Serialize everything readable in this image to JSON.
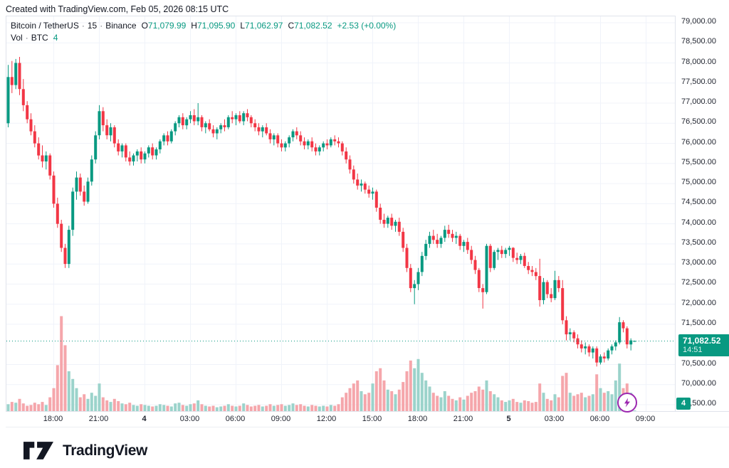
{
  "header": {
    "credit": "Created with TradingView.com, Feb 05, 2026 08:15 UTC"
  },
  "legend": {
    "series": "Bitcoin / TetherUS",
    "interval": "15",
    "exchange": "Binance",
    "dot": "·",
    "o_label": "O",
    "o": "71,079.99",
    "h_label": "H",
    "h": "71,095.90",
    "l_label": "L",
    "l": "71,062.97",
    "c_label": "C",
    "c": "71,082.52",
    "change": "+2.53 (+0.00%)",
    "vol_label": "Vol",
    "vol_unit": "BTC",
    "vol_value": "4"
  },
  "price_scale": {
    "ticks": [
      {
        "label": "79,000.00",
        "price": 79000
      },
      {
        "label": "78,500.00",
        "price": 78500
      },
      {
        "label": "78,000.00",
        "price": 78000
      },
      {
        "label": "77,500.00",
        "price": 77500
      },
      {
        "label": "77,000.00",
        "price": 77000
      },
      {
        "label": "76,500.00",
        "price": 76500
      },
      {
        "label": "76,000.00",
        "price": 76000
      },
      {
        "label": "75,500.00",
        "price": 75500
      },
      {
        "label": "75,000.00",
        "price": 75000
      },
      {
        "label": "74,500.00",
        "price": 74500
      },
      {
        "label": "74,000.00",
        "price": 74000
      },
      {
        "label": "73,500.00",
        "price": 73500
      },
      {
        "label": "73,000.00",
        "price": 73000
      },
      {
        "label": "72,500.00",
        "price": 72500
      },
      {
        "label": "72,000.00",
        "price": 72000
      },
      {
        "label": "71,500.00",
        "price": 71500
      },
      {
        "label": "70,500.00",
        "price": 70500
      },
      {
        "label": "70,000.00",
        "price": 70000
      },
      {
        "label": "69,500.00",
        "price": 69500
      }
    ],
    "badge": {
      "price": "71,082.52",
      "countdown": "14:51"
    },
    "volume_badge": "4"
  },
  "time_scale": {
    "ticks": [
      {
        "label": "18:00",
        "bar": 12,
        "bold": false
      },
      {
        "label": "21:00",
        "bar": 24,
        "bold": false
      },
      {
        "label": "4",
        "bar": 36,
        "bold": true
      },
      {
        "label": "03:00",
        "bar": 48,
        "bold": false
      },
      {
        "label": "06:00",
        "bar": 60,
        "bold": false
      },
      {
        "label": "09:00",
        "bar": 72,
        "bold": false
      },
      {
        "label": "12:00",
        "bar": 84,
        "bold": false
      },
      {
        "label": "15:00",
        "bar": 96,
        "bold": false
      },
      {
        "label": "18:00",
        "bar": 108,
        "bold": false
      },
      {
        "label": "21:00",
        "bar": 120,
        "bold": false
      },
      {
        "label": "5",
        "bar": 132,
        "bold": true
      },
      {
        "label": "03:00",
        "bar": 144,
        "bold": false
      },
      {
        "label": "06:00",
        "bar": 156,
        "bold": false
      },
      {
        "label": "09:00",
        "bar": 168,
        "bold": false
      }
    ]
  },
  "footer": {
    "logo_text": "TradingView"
  },
  "colors": {
    "up": "#089981",
    "down": "#f23645",
    "volume_up": "#9bd3cb",
    "volume_down": "#f5a6ab",
    "grid": "#f0f3fa",
    "separator": "#e0e3eb",
    "badge_bg": "#089981",
    "accent_purple": "#9c27b0",
    "text": "#131722"
  },
  "chart_data": {
    "type": "candlestick+volume",
    "title": "Bitcoin / TetherUS · 15 · Binance",
    "interval_minutes": 15,
    "price_axis": {
      "top": 79159,
      "bottom": 69323,
      "tick_step": 500
    },
    "current_price": 71082.52,
    "current_bar_countdown": "14:51",
    "current_volume": 4,
    "volume_scale_max": 650,
    "bars_note": "each bar = [open, high, low, close, volume]; 15-min bars, 2026-02-03 15:00 UTC through 2026-02-05 08:15 UTC",
    "bars": [
      [
        76500,
        77950,
        76400,
        77650,
        45
      ],
      [
        77650,
        78050,
        77250,
        77450,
        60
      ],
      [
        77450,
        78100,
        77350,
        78000,
        55
      ],
      [
        78000,
        78150,
        77200,
        77350,
        80
      ],
      [
        77350,
        77600,
        76800,
        76950,
        50
      ],
      [
        76950,
        77050,
        76500,
        76600,
        35
      ],
      [
        76600,
        76750,
        76200,
        76300,
        40
      ],
      [
        76300,
        76450,
        75900,
        76000,
        55
      ],
      [
        76000,
        76150,
        75600,
        75700,
        45
      ],
      [
        75700,
        75950,
        75400,
        75550,
        60
      ],
      [
        75550,
        75800,
        75350,
        75700,
        40
      ],
      [
        75700,
        75750,
        75100,
        75200,
        90
      ],
      [
        75200,
        75300,
        74400,
        74500,
        150
      ],
      [
        74500,
        74650,
        73900,
        74000,
        300
      ],
      [
        74000,
        74100,
        73300,
        73400,
        620
      ],
      [
        73400,
        73500,
        72900,
        73000,
        430
      ],
      [
        73000,
        73950,
        72900,
        73850,
        260
      ],
      [
        73850,
        74900,
        73700,
        74800,
        210
      ],
      [
        74800,
        75300,
        74600,
        75150,
        150
      ],
      [
        75150,
        75250,
        74700,
        74800,
        90
      ],
      [
        74800,
        74950,
        74450,
        74550,
        110
      ],
      [
        74550,
        75150,
        74500,
        75050,
        80
      ],
      [
        75050,
        75700,
        74950,
        75600,
        120
      ],
      [
        75600,
        76300,
        75500,
        76200,
        100
      ],
      [
        76200,
        76950,
        76100,
        76800,
        180
      ],
      [
        76800,
        76900,
        76300,
        76450,
        90
      ],
      [
        76450,
        76600,
        76100,
        76200,
        70
      ],
      [
        76200,
        76500,
        76050,
        76400,
        60
      ],
      [
        76400,
        76450,
        75900,
        76000,
        80
      ],
      [
        76000,
        76100,
        75700,
        75800,
        65
      ],
      [
        75800,
        76000,
        75650,
        75950,
        50
      ],
      [
        75950,
        76000,
        75550,
        75650,
        45
      ],
      [
        75650,
        75800,
        75450,
        75550,
        55
      ],
      [
        75550,
        75750,
        75450,
        75700,
        40
      ],
      [
        75700,
        75850,
        75550,
        75800,
        35
      ],
      [
        75800,
        75900,
        75500,
        75600,
        45
      ],
      [
        75600,
        75800,
        75500,
        75750,
        40
      ],
      [
        75750,
        75950,
        75650,
        75900,
        35
      ],
      [
        75900,
        76000,
        75600,
        75700,
        30
      ],
      [
        75700,
        75900,
        75600,
        75850,
        35
      ],
      [
        75850,
        76100,
        75750,
        76050,
        45
      ],
      [
        76050,
        76250,
        75950,
        76200,
        40
      ],
      [
        76200,
        76300,
        75950,
        76050,
        35
      ],
      [
        76050,
        76350,
        76000,
        76300,
        30
      ],
      [
        76300,
        76550,
        76200,
        76500,
        50
      ],
      [
        76500,
        76700,
        76400,
        76650,
        55
      ],
      [
        76650,
        76750,
        76350,
        76450,
        40
      ],
      [
        76450,
        76650,
        76350,
        76600,
        35
      ],
      [
        76600,
        76800,
        76500,
        76700,
        45
      ],
      [
        76700,
        76850,
        76450,
        76550,
        50
      ],
      [
        76550,
        77000,
        76450,
        76650,
        70
      ],
      [
        76650,
        76700,
        76300,
        76400,
        45
      ],
      [
        76400,
        76550,
        76250,
        76500,
        35
      ],
      [
        76500,
        76600,
        76300,
        76350,
        30
      ],
      [
        76350,
        76450,
        76150,
        76250,
        35
      ],
      [
        76250,
        76400,
        76100,
        76350,
        25
      ],
      [
        76350,
        76500,
        76250,
        76450,
        30
      ],
      [
        76450,
        76600,
        76300,
        76400,
        35
      ],
      [
        76400,
        76700,
        76350,
        76650,
        45
      ],
      [
        76650,
        76800,
        76500,
        76600,
        35
      ],
      [
        76600,
        76750,
        76450,
        76700,
        30
      ],
      [
        76700,
        76800,
        76500,
        76550,
        35
      ],
      [
        76550,
        76800,
        76450,
        76750,
        50
      ],
      [
        76750,
        76850,
        76550,
        76650,
        40
      ],
      [
        76650,
        76700,
        76400,
        76500,
        30
      ],
      [
        76500,
        76600,
        76300,
        76400,
        35
      ],
      [
        76400,
        76500,
        76200,
        76300,
        40
      ],
      [
        76300,
        76450,
        76150,
        76400,
        30
      ],
      [
        76400,
        76500,
        76200,
        76250,
        35
      ],
      [
        76250,
        76350,
        76000,
        76100,
        45
      ],
      [
        76100,
        76250,
        75950,
        76200,
        35
      ],
      [
        76200,
        76250,
        75900,
        76000,
        40
      ],
      [
        76000,
        76100,
        75800,
        75900,
        45
      ],
      [
        75900,
        76050,
        75800,
        76000,
        35
      ],
      [
        76000,
        76200,
        75900,
        76150,
        40
      ],
      [
        76150,
        76350,
        76050,
        76300,
        50
      ],
      [
        76300,
        76400,
        76100,
        76200,
        40
      ],
      [
        76200,
        76300,
        75950,
        76050,
        45
      ],
      [
        76050,
        76150,
        75850,
        75950,
        35
      ],
      [
        75950,
        76100,
        75850,
        76050,
        30
      ],
      [
        76050,
        76150,
        75800,
        75900,
        40
      ],
      [
        75900,
        76000,
        75700,
        75800,
        35
      ],
      [
        75800,
        75950,
        75700,
        75900,
        30
      ],
      [
        75900,
        76050,
        75800,
        76000,
        35
      ],
      [
        76000,
        76100,
        75850,
        75950,
        30
      ],
      [
        75950,
        76150,
        75900,
        76100,
        40
      ],
      [
        76100,
        76200,
        75950,
        76050,
        35
      ],
      [
        76050,
        76150,
        75900,
        76000,
        45
      ],
      [
        76000,
        76050,
        75700,
        75800,
        90
      ],
      [
        75800,
        75900,
        75500,
        75600,
        120
      ],
      [
        75600,
        75700,
        75250,
        75350,
        150
      ],
      [
        75350,
        75450,
        75000,
        75100,
        180
      ],
      [
        75100,
        75250,
        74850,
        74950,
        200
      ],
      [
        74950,
        75100,
        74800,
        75000,
        130
      ],
      [
        75000,
        75050,
        74750,
        74850,
        110
      ],
      [
        74850,
        74950,
        74650,
        74750,
        120
      ],
      [
        74750,
        74900,
        74600,
        74800,
        180
      ],
      [
        74800,
        74850,
        74300,
        74400,
        260
      ],
      [
        74400,
        74500,
        74000,
        74100,
        280
      ],
      [
        74100,
        74250,
        73900,
        74000,
        200
      ],
      [
        74000,
        74200,
        73900,
        74150,
        140
      ],
      [
        74150,
        74250,
        73850,
        73950,
        130
      ],
      [
        73950,
        74100,
        73800,
        74050,
        110
      ],
      [
        74050,
        74150,
        73700,
        73800,
        140
      ],
      [
        73800,
        73900,
        73300,
        73400,
        190
      ],
      [
        73400,
        73500,
        72800,
        72900,
        260
      ],
      [
        72900,
        73000,
        72300,
        72400,
        330
      ],
      [
        72400,
        72600,
        72000,
        72500,
        280
      ],
      [
        72500,
        72900,
        72350,
        72800,
        340
      ],
      [
        72800,
        73300,
        72700,
        73200,
        250
      ],
      [
        73200,
        73600,
        73100,
        73500,
        200
      ],
      [
        73500,
        73800,
        73400,
        73700,
        160
      ],
      [
        73700,
        73850,
        73500,
        73600,
        120
      ],
      [
        73600,
        73750,
        73400,
        73500,
        100
      ],
      [
        73500,
        73700,
        73400,
        73650,
        90
      ],
      [
        73650,
        73950,
        73550,
        73850,
        130
      ],
      [
        73850,
        73975,
        73650,
        73750,
        100
      ],
      [
        73750,
        73850,
        73550,
        73650,
        80
      ],
      [
        73650,
        73800,
        73500,
        73700,
        70
      ],
      [
        73700,
        73750,
        73350,
        73450,
        90
      ],
      [
        73450,
        73600,
        73300,
        73550,
        75
      ],
      [
        73550,
        73650,
        73250,
        73350,
        100
      ],
      [
        73350,
        73450,
        73000,
        73100,
        120
      ],
      [
        73100,
        73200,
        72750,
        72850,
        130
      ],
      [
        72850,
        72900,
        72300,
        72400,
        160
      ],
      [
        72400,
        72500,
        71890,
        72300,
        140
      ],
      [
        72300,
        73500,
        72250,
        73450,
        200
      ],
      [
        73450,
        73500,
        72800,
        72900,
        130
      ],
      [
        72900,
        73350,
        72850,
        73300,
        110
      ],
      [
        73300,
        73400,
        73100,
        73350,
        90
      ],
      [
        73350,
        73450,
        73150,
        73250,
        70
      ],
      [
        73250,
        73400,
        73150,
        73350,
        60
      ],
      [
        73350,
        73450,
        73200,
        73400,
        70
      ],
      [
        73400,
        73420,
        73050,
        73150,
        80
      ],
      [
        73150,
        73280,
        73000,
        73100,
        60
      ],
      [
        73100,
        73250,
        73000,
        73200,
        55
      ],
      [
        73200,
        73280,
        72900,
        72950,
        70
      ],
      [
        72950,
        73050,
        72750,
        72850,
        65
      ],
      [
        72850,
        72950,
        72700,
        72800,
        55
      ],
      [
        72800,
        72900,
        72600,
        72700,
        60
      ],
      [
        72700,
        73130,
        71940,
        72100,
        180
      ],
      [
        72100,
        72650,
        72000,
        72550,
        120
      ],
      [
        72550,
        72600,
        72150,
        72250,
        80
      ],
      [
        72250,
        72400,
        72050,
        72150,
        70
      ],
      [
        72150,
        72830,
        72100,
        72600,
        110
      ],
      [
        72600,
        72700,
        72300,
        72400,
        90
      ],
      [
        72400,
        72600,
        71500,
        71600,
        230
      ],
      [
        71600,
        71700,
        71100,
        71250,
        250
      ],
      [
        71250,
        71400,
        71100,
        71300,
        120
      ],
      [
        71300,
        71350,
        71050,
        71150,
        100
      ],
      [
        71150,
        71250,
        70900,
        71000,
        110
      ],
      [
        71000,
        71100,
        70800,
        70900,
        120
      ],
      [
        70900,
        71050,
        70750,
        70950,
        90
      ],
      [
        70950,
        71000,
        70700,
        70800,
        100
      ],
      [
        70800,
        70950,
        70650,
        70900,
        110
      ],
      [
        70900,
        70950,
        70450,
        70550,
        240
      ],
      [
        70550,
        70750,
        70500,
        70700,
        150
      ],
      [
        70700,
        70800,
        70550,
        70650,
        120
      ],
      [
        70650,
        70900,
        70600,
        70850,
        130
      ],
      [
        70850,
        71000,
        70750,
        70950,
        110
      ],
      [
        70950,
        71100,
        70850,
        71050,
        200
      ],
      [
        71050,
        71680,
        71000,
        71550,
        310
      ],
      [
        71550,
        71600,
        71300,
        71400,
        150
      ],
      [
        71400,
        71450,
        70900,
        71000,
        180
      ],
      [
        71000,
        71150,
        70850,
        71100,
        120
      ],
      [
        71079.99,
        71095.9,
        71062.97,
        71082.52,
        4
      ]
    ]
  }
}
